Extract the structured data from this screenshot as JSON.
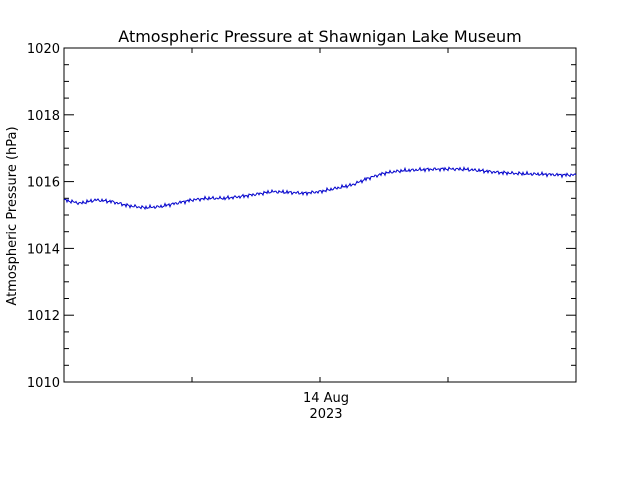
{
  "chart_data": {
    "type": "line",
    "title": "Atmospheric Pressure at Shawnigan Lake Museum",
    "xlabel": "",
    "ylabel": "Atmospheric Pressure (hPa)",
    "ylim": [
      1010,
      1020
    ],
    "y_ticks": [
      "1010",
      "1012",
      "1014",
      "1016",
      "1018",
      "1020"
    ],
    "x_tick_label": [
      "14 Aug",
      "2023"
    ],
    "x_range_hours": [
      -24,
      24
    ],
    "grid": false,
    "colors": {
      "line": "#0000cc",
      "axes": "#000000"
    },
    "series": [
      {
        "x_hours": [
          -24,
          -22.5,
          -21,
          -19.5,
          -18,
          -16.5,
          -15,
          -13.5,
          -12,
          -10.5,
          -9,
          -7.5,
          -6,
          -4.5,
          -3,
          -1.5,
          0,
          1.5,
          3,
          4.5,
          6,
          7.5,
          9,
          10.5,
          12,
          13.5,
          15,
          16.5,
          18,
          19.5,
          21,
          22.5,
          24
        ],
        "values": [
          1015.45,
          1015.35,
          1015.45,
          1015.4,
          1015.28,
          1015.22,
          1015.25,
          1015.35,
          1015.45,
          1015.5,
          1015.5,
          1015.55,
          1015.62,
          1015.7,
          1015.68,
          1015.65,
          1015.7,
          1015.8,
          1015.9,
          1016.1,
          1016.25,
          1016.32,
          1016.35,
          1016.37,
          1016.38,
          1016.37,
          1016.33,
          1016.28,
          1016.25,
          1016.23,
          1016.22,
          1016.2,
          1016.2
        ]
      }
    ]
  }
}
